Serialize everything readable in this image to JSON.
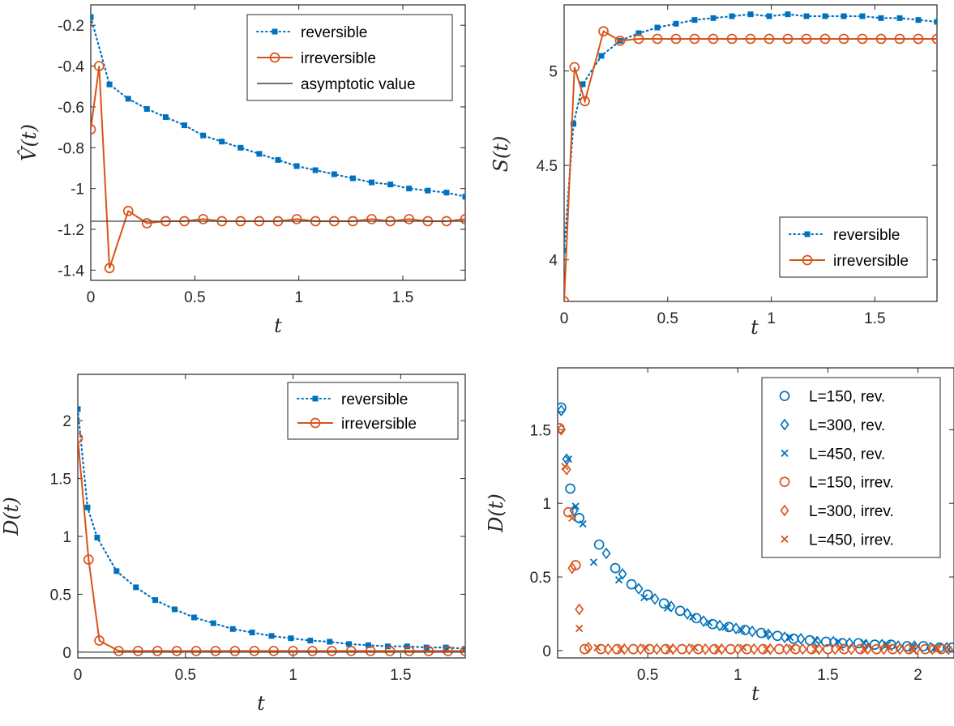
{
  "colors": {
    "blue": "#0072BD",
    "orange": "#D95319",
    "ref_line": "#404040",
    "axes": "#262626"
  },
  "chart_data": [
    {
      "type": "line",
      "title": "",
      "xlabel": "t",
      "ylabel": "V̂(t)",
      "xlim": [
        0,
        1.8
      ],
      "ylim": [
        -1.45,
        -0.1
      ],
      "xticks": [
        "0",
        "0.5",
        "1",
        "1.5"
      ],
      "yticks": [
        "-0.2",
        "-0.4",
        "-0.6",
        "-0.8",
        "-1",
        "-1.2",
        "-1.4"
      ],
      "legend_position": "top-right",
      "series": [
        {
          "name": "reversible",
          "style": "dotted-square",
          "x": [
            0,
            0.09,
            0.18,
            0.27,
            0.36,
            0.45,
            0.54,
            0.63,
            0.72,
            0.81,
            0.9,
            0.99,
            1.08,
            1.17,
            1.26,
            1.35,
            1.44,
            1.53,
            1.62,
            1.71,
            1.8
          ],
          "y": [
            -0.16,
            -0.49,
            -0.56,
            -0.61,
            -0.65,
            -0.69,
            -0.74,
            -0.77,
            -0.8,
            -0.83,
            -0.86,
            -0.89,
            -0.91,
            -0.93,
            -0.95,
            -0.97,
            -0.98,
            -1.0,
            -1.01,
            -1.02,
            -1.04
          ]
        },
        {
          "name": "irreversible",
          "style": "line-circle",
          "x": [
            0,
            0.04,
            0.09,
            0.18,
            0.27,
            0.36,
            0.45,
            0.54,
            0.63,
            0.72,
            0.81,
            0.9,
            0.99,
            1.08,
            1.17,
            1.26,
            1.35,
            1.44,
            1.53,
            1.62,
            1.71,
            1.8
          ],
          "y": [
            -0.71,
            -0.4,
            -1.39,
            -1.11,
            -1.17,
            -1.16,
            -1.16,
            -1.15,
            -1.16,
            -1.16,
            -1.16,
            -1.16,
            -1.15,
            -1.16,
            -1.16,
            -1.16,
            -1.15,
            -1.16,
            -1.15,
            -1.16,
            -1.16,
            -1.15
          ]
        },
        {
          "name": "asymptotic value",
          "style": "hline",
          "y": -1.16
        }
      ]
    },
    {
      "type": "line",
      "title": "",
      "xlabel": "t",
      "ylabel": "S(t)",
      "xlim": [
        0,
        1.8
      ],
      "ylim": [
        3.78,
        5.35
      ],
      "xticks": [
        "0",
        "0.5",
        "1",
        "1.5"
      ],
      "yticks": [
        "5",
        "4.5",
        "4"
      ],
      "legend_position": "bottom-right",
      "series": [
        {
          "name": "reversible",
          "style": "dotted-square",
          "x": [
            0,
            0.045,
            0.09,
            0.18,
            0.27,
            0.36,
            0.45,
            0.54,
            0.63,
            0.72,
            0.81,
            0.9,
            0.99,
            1.08,
            1.17,
            1.26,
            1.35,
            1.44,
            1.53,
            1.62,
            1.71,
            1.8
          ],
          "y": [
            4.05,
            4.72,
            4.93,
            5.08,
            5.16,
            5.2,
            5.23,
            5.25,
            5.27,
            5.28,
            5.29,
            5.3,
            5.29,
            5.3,
            5.29,
            5.29,
            5.29,
            5.29,
            5.28,
            5.28,
            5.27,
            5.26
          ]
        },
        {
          "name": "irreversible",
          "style": "line-circle",
          "x": [
            0,
            0.05,
            0.1,
            0.19,
            0.27,
            0.36,
            0.45,
            0.54,
            0.63,
            0.72,
            0.81,
            0.9,
            0.99,
            1.08,
            1.17,
            1.26,
            1.35,
            1.44,
            1.53,
            1.62,
            1.71,
            1.8
          ],
          "y": [
            3.78,
            5.02,
            4.84,
            5.21,
            5.16,
            5.17,
            5.17,
            5.17,
            5.17,
            5.17,
            5.17,
            5.17,
            5.17,
            5.17,
            5.17,
            5.17,
            5.17,
            5.17,
            5.17,
            5.17,
            5.17,
            5.17
          ]
        }
      ]
    },
    {
      "type": "line",
      "title": "",
      "xlabel": "t",
      "ylabel": "D(t)",
      "xlim": [
        0,
        1.8
      ],
      "ylim": [
        -0.05,
        2.4
      ],
      "xticks": [
        "0",
        "0.5",
        "1",
        "1.5"
      ],
      "yticks": [
        "2",
        "1.5",
        "1",
        "0.5",
        "0"
      ],
      "legend_position": "top-right",
      "series": [
        {
          "name": "reversible",
          "style": "dotted-square",
          "x": [
            0,
            0.045,
            0.09,
            0.18,
            0.27,
            0.36,
            0.45,
            0.54,
            0.63,
            0.72,
            0.81,
            0.9,
            0.99,
            1.08,
            1.17,
            1.26,
            1.35,
            1.44,
            1.53,
            1.62,
            1.71,
            1.8
          ],
          "y": [
            2.1,
            1.25,
            0.99,
            0.7,
            0.56,
            0.45,
            0.37,
            0.3,
            0.25,
            0.2,
            0.17,
            0.14,
            0.12,
            0.1,
            0.09,
            0.07,
            0.06,
            0.05,
            0.05,
            0.04,
            0.04,
            0.03
          ]
        },
        {
          "name": "irreversible",
          "style": "line-circle",
          "x": [
            0,
            0.05,
            0.1,
            0.19,
            0.28,
            0.37,
            0.46,
            0.55,
            0.64,
            0.73,
            0.82,
            0.91,
            1.0,
            1.09,
            1.18,
            1.27,
            1.36,
            1.45,
            1.54,
            1.63,
            1.72,
            1.8
          ],
          "y": [
            1.85,
            0.8,
            0.1,
            0.01,
            0.01,
            0.01,
            0.01,
            0.01,
            0.01,
            0.01,
            0.01,
            0.01,
            0.01,
            0.01,
            0.01,
            0.01,
            0.01,
            0.01,
            0.01,
            0.01,
            0.01,
            0.01
          ]
        },
        {
          "name": "",
          "style": "hline",
          "y": 0
        }
      ]
    },
    {
      "type": "scatter",
      "title": "",
      "xlabel": "t",
      "ylabel": "D(t)",
      "xlim": [
        0,
        2.2
      ],
      "ylim": [
        -0.05,
        1.92
      ],
      "xticks": [
        "0.5",
        "1",
        "1.5",
        "2"
      ],
      "yticks": [
        "1.5",
        "1",
        "0.5",
        "0"
      ],
      "legend_position": "top-right",
      "series": [
        {
          "name": "L=150, rev.",
          "marker": "circle",
          "color": "blue",
          "x": [
            0.02,
            0.07,
            0.12,
            0.23,
            0.32,
            0.41,
            0.5,
            0.59,
            0.68,
            0.77,
            0.86,
            0.95,
            1.04,
            1.13,
            1.22,
            1.31,
            1.4,
            1.49,
            1.58,
            1.67,
            1.76,
            1.85,
            1.94,
            2.03,
            2.12,
            2.19
          ],
          "y": [
            1.65,
            1.1,
            0.9,
            0.72,
            0.56,
            0.45,
            0.38,
            0.32,
            0.27,
            0.22,
            0.18,
            0.16,
            0.14,
            0.12,
            0.1,
            0.08,
            0.07,
            0.06,
            0.05,
            0.05,
            0.04,
            0.04,
            0.03,
            0.03,
            0.02,
            0.02
          ]
        },
        {
          "name": "L=300, rev.",
          "marker": "diamond",
          "color": "blue",
          "x": [
            0.02,
            0.05,
            0.09,
            0.27,
            0.36,
            0.45,
            0.54,
            0.63,
            0.72,
            0.81,
            0.9,
            0.99,
            1.08,
            1.17,
            1.26,
            1.35,
            1.44,
            1.53,
            1.62,
            1.71,
            1.8,
            1.89,
            1.98,
            2.07,
            2.16
          ],
          "y": [
            1.63,
            1.3,
            0.95,
            0.66,
            0.52,
            0.42,
            0.35,
            0.3,
            0.25,
            0.2,
            0.17,
            0.15,
            0.13,
            0.11,
            0.09,
            0.08,
            0.06,
            0.06,
            0.05,
            0.04,
            0.04,
            0.03,
            0.03,
            0.02,
            0.02
          ]
        },
        {
          "name": "L=450, rev.",
          "marker": "x",
          "color": "blue",
          "x": [
            0.06,
            0.1,
            0.14,
            0.2,
            0.34,
            0.48,
            0.61,
            0.75,
            0.84,
            0.93,
            1.02,
            1.16,
            1.29,
            1.43,
            1.56,
            1.7,
            1.83,
            1.97,
            2.1
          ],
          "y": [
            1.3,
            0.98,
            0.86,
            0.6,
            0.48,
            0.36,
            0.29,
            0.23,
            0.19,
            0.16,
            0.14,
            0.11,
            0.09,
            0.07,
            0.06,
            0.05,
            0.04,
            0.03,
            0.02
          ]
        },
        {
          "name": "L=150, irrev.",
          "marker": "circle",
          "color": "orange",
          "x": [
            0.01,
            0.06,
            0.1,
            0.15,
            0.24,
            0.33,
            0.42,
            0.51,
            0.6,
            0.69,
            0.78,
            0.87,
            0.96,
            1.05,
            1.14,
            1.23,
            1.32,
            1.41,
            1.5,
            1.59,
            1.68,
            1.77,
            1.86,
            1.95,
            2.04,
            2.13
          ],
          "y": [
            1.51,
            0.94,
            0.58,
            0.01,
            0.01,
            0.01,
            0.01,
            0.01,
            0.01,
            0.01,
            0.01,
            0.01,
            0.01,
            0.01,
            0.01,
            0.01,
            0.01,
            0.01,
            0.01,
            0.01,
            0.01,
            0.01,
            0.01,
            0.01,
            0.01,
            0.01
          ]
        },
        {
          "name": "L=300, irrev.",
          "marker": "diamond",
          "color": "orange",
          "x": [
            0.02,
            0.05,
            0.08,
            0.12,
            0.17,
            0.28,
            0.37,
            0.46,
            0.55,
            0.64,
            0.73,
            0.82,
            0.91,
            1.0,
            1.09,
            1.18,
            1.27,
            1.36,
            1.45,
            1.54,
            1.63,
            1.72,
            1.81,
            1.9,
            1.99,
            2.08,
            2.17
          ],
          "y": [
            1.5,
            1.23,
            0.56,
            0.28,
            0.02,
            0.01,
            0.01,
            0.01,
            0.01,
            0.01,
            0.01,
            0.01,
            0.01,
            0.01,
            0.01,
            0.01,
            0.01,
            0.01,
            0.01,
            0.01,
            0.01,
            0.01,
            0.01,
            0.01,
            0.01,
            0.01,
            0.01
          ]
        },
        {
          "name": "L=450, irrev.",
          "marker": "x",
          "color": "orange",
          "x": [
            0.04,
            0.08,
            0.12,
            0.22,
            0.35,
            0.49,
            0.62,
            0.76,
            0.89,
            1.03,
            1.16,
            1.3,
            1.43,
            1.57,
            1.7,
            1.84,
            1.97,
            2.11
          ],
          "y": [
            1.25,
            0.9,
            0.15,
            0.02,
            0.01,
            0.02,
            0.01,
            0.02,
            0.01,
            0.02,
            0.01,
            0.02,
            0.01,
            0.02,
            0.01,
            0.02,
            0.01,
            0.01
          ]
        }
      ]
    }
  ]
}
